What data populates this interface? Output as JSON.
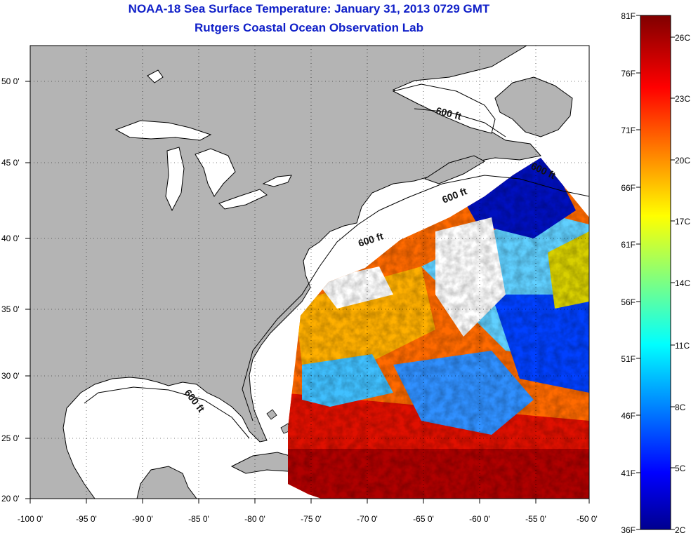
{
  "title": {
    "line1": "NOAA-18 Sea Surface Temperature:  January 31, 2013 0729 GMT",
    "line2": "Rutgers Coastal Ocean Observation Lab"
  },
  "map": {
    "lon_range": [
      -100,
      -50
    ],
    "lat_range": [
      20,
      52.5
    ],
    "lon_ticks": [
      "-100 0'",
      "-95 0'",
      "-90 0'",
      "-85 0'",
      "-80 0'",
      "-75 0'",
      "-70 0'",
      "-65 0'",
      "-60 0'",
      "-55 0'",
      "-50 0'"
    ],
    "lat_ticks": [
      "50 0'",
      "45 0'",
      "40 0'",
      "35 0'",
      "30 0'",
      "25 0'",
      "20 0'"
    ],
    "depth_contour_labels": [
      "600 ft",
      "600 ft",
      "600 ft",
      "600 ft",
      "600 ft"
    ],
    "colors": {
      "land": "#b4b4b4",
      "shelf": "#ffffff",
      "cloud": "#ffffff"
    }
  },
  "colorbar": {
    "fahrenheit_labels": [
      "81F",
      "76F",
      "71F",
      "66F",
      "61F",
      "56F",
      "51F",
      "46F",
      "41F",
      "36F"
    ],
    "celsius_labels": [
      "26C",
      "23C",
      "20C",
      "17C",
      "14C",
      "11C",
      "8C",
      "5C",
      "2C"
    ],
    "range_c": [
      2,
      27.2
    ],
    "colormap": "jet"
  }
}
